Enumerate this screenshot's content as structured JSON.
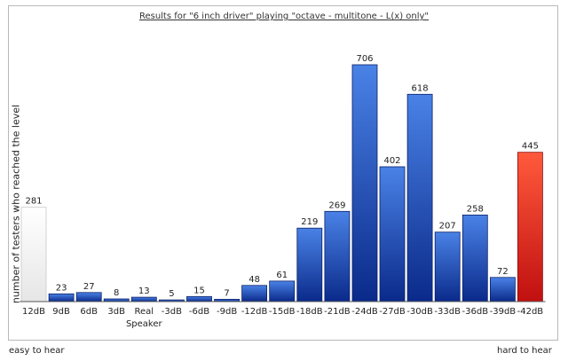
{
  "chart_data": {
    "type": "bar",
    "title": "Results for \"6 inch driver\" playing \"octave - multitone - L(x) only\"",
    "ylabel": "number of testers who reached the level",
    "categories": [
      "12dB",
      "9dB",
      "6dB",
      "3dB",
      "Real\nSpeaker",
      "-3dB",
      "-6dB",
      "-9dB",
      "-12dB",
      "-15dB",
      "-18dB",
      "-21dB",
      "-24dB",
      "-27dB",
      "-30dB",
      "-33dB",
      "-36dB",
      "-39dB",
      "-42dB"
    ],
    "values": [
      281,
      23,
      27,
      8,
      13,
      5,
      15,
      7,
      48,
      61,
      219,
      269,
      706,
      402,
      618,
      207,
      258,
      72,
      445
    ],
    "ylim": [
      0,
      706
    ],
    "bar_styles": [
      "white",
      "blue",
      "blue",
      "blue",
      "blue",
      "blue",
      "blue",
      "blue",
      "blue",
      "blue",
      "blue",
      "blue",
      "blue",
      "blue",
      "blue",
      "blue",
      "blue",
      "blue",
      "red"
    ],
    "colors": {
      "blue_top": "#4a82e6",
      "blue_bottom": "#0a2a8a",
      "red_top": "#ff5a3c",
      "red_bottom": "#c01010",
      "white_top": "#ffffff",
      "white_bottom": "#e6e6e6"
    },
    "grid": false
  },
  "footer": {
    "left": "easy to hear",
    "right": "hard to hear"
  }
}
